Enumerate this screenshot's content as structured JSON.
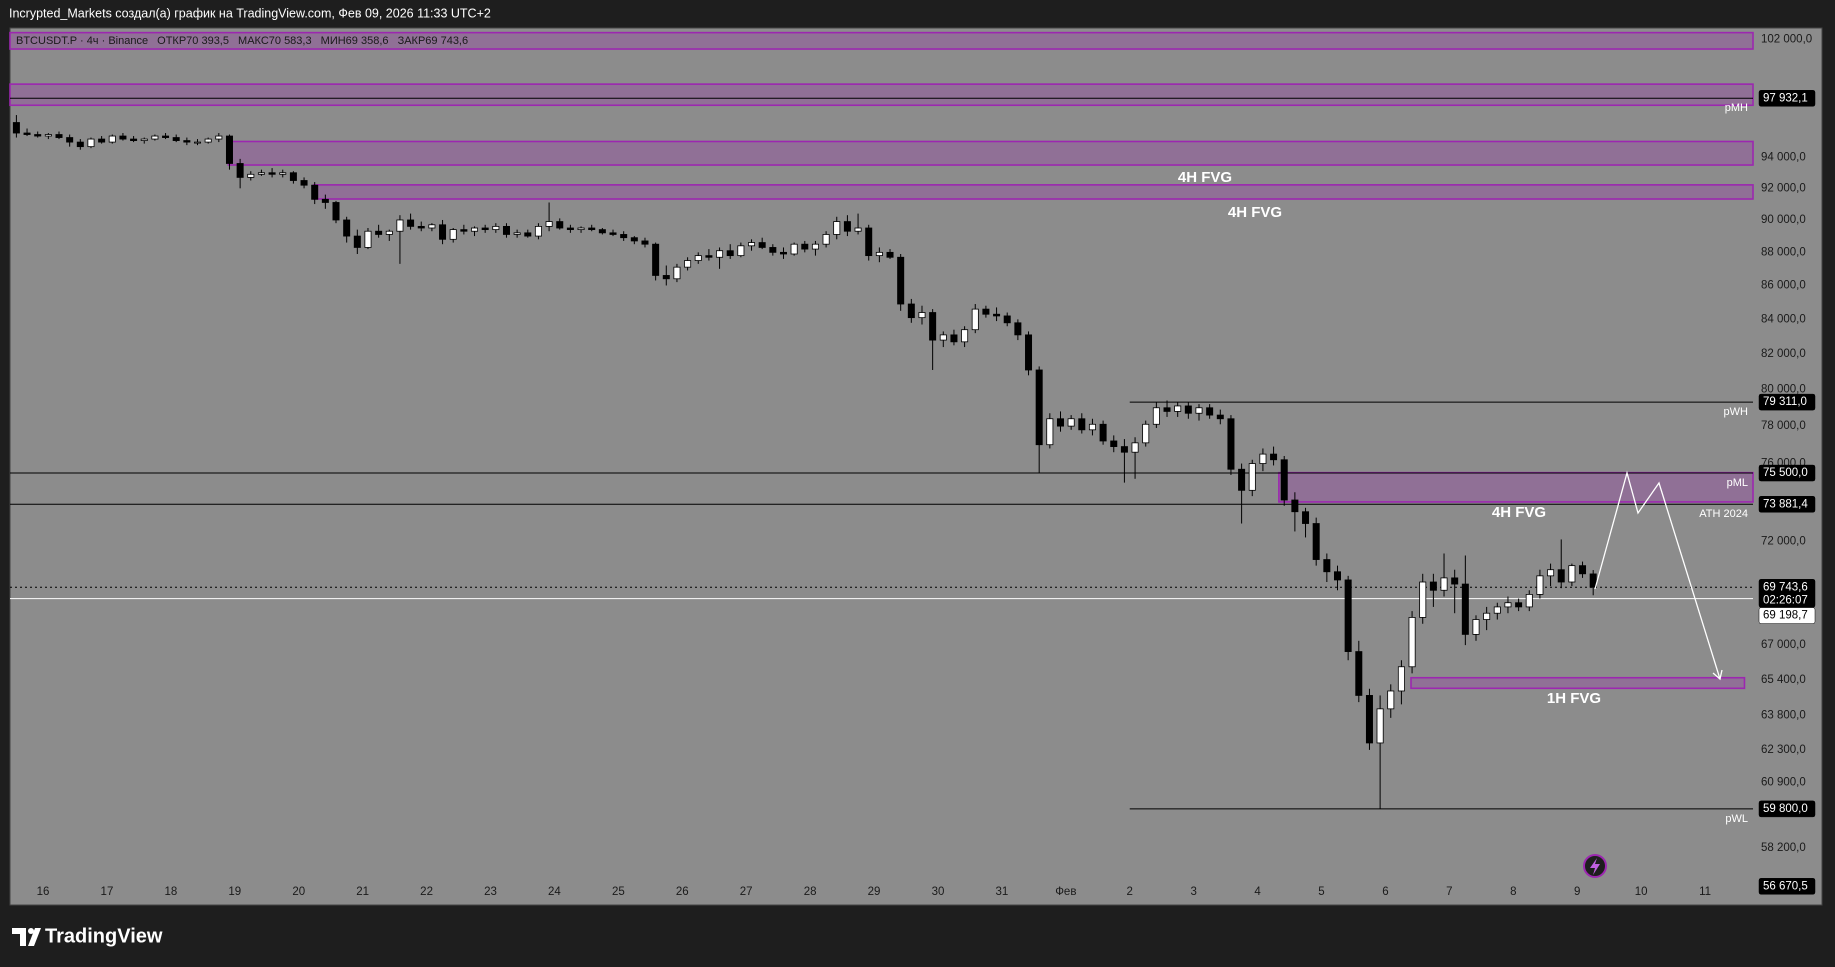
{
  "header": {
    "title": "Incrypted_Markets создал(а) график на TradingView.com, Фев 09, 2026 11:33 UTC+2"
  },
  "chart_data": {
    "type": "candlestick",
    "symbol": "BTCUSDT.P · 4ч · Binance",
    "legend": [
      "ОТКР70 393,5",
      "МАКС70 583,3",
      "МИН69 358,6",
      "ЗАКР69 743,6"
    ],
    "log_scale": true,
    "grid": false,
    "up_color": "#ffffff",
    "down_color": "#000000",
    "ylim": [
      55940,
      102830
    ],
    "yticks": [
      {
        "value": 102000,
        "label": "102 000,0"
      },
      {
        "value": 94000,
        "label": "94 000,0"
      },
      {
        "value": 92000,
        "label": "92 000,0"
      },
      {
        "value": 90000,
        "label": "90 000,0"
      },
      {
        "value": 88000,
        "label": "88 000,0"
      },
      {
        "value": 86000,
        "label": "86 000,0"
      },
      {
        "value": 84000,
        "label": "84 000,0"
      },
      {
        "value": 82000,
        "label": "82 000,0"
      },
      {
        "value": 80000,
        "label": "80 000,0"
      },
      {
        "value": 78000,
        "label": "78 000,0"
      },
      {
        "value": 76000,
        "label": "76 000,0"
      },
      {
        "value": 72000,
        "label": "72 000,0"
      },
      {
        "value": 67000,
        "label": "67 000,0"
      },
      {
        "value": 65400,
        "label": "65 400,0"
      },
      {
        "value": 63800,
        "label": "63 800,0"
      },
      {
        "value": 62300,
        "label": "62 300,0"
      },
      {
        "value": 60900,
        "label": "60 900,0"
      },
      {
        "value": 58200,
        "label": "58 200,0"
      }
    ],
    "xlim": [
      -0.6,
      163
    ],
    "xticks": [
      {
        "value": 2.5,
        "label": "16"
      },
      {
        "value": 8.5,
        "label": "17"
      },
      {
        "value": 14.5,
        "label": "18"
      },
      {
        "value": 20.5,
        "label": "19"
      },
      {
        "value": 26.5,
        "label": "20"
      },
      {
        "value": 32.5,
        "label": "21"
      },
      {
        "value": 38.5,
        "label": "22"
      },
      {
        "value": 44.5,
        "label": "23"
      },
      {
        "value": 50.5,
        "label": "24"
      },
      {
        "value": 56.5,
        "label": "25"
      },
      {
        "value": 62.5,
        "label": "26"
      },
      {
        "value": 68.5,
        "label": "27"
      },
      {
        "value": 74.5,
        "label": "28"
      },
      {
        "value": 80.5,
        "label": "29"
      },
      {
        "value": 86.5,
        "label": "30"
      },
      {
        "value": 92.5,
        "label": "31"
      },
      {
        "value": 98.5,
        "label": "Фев"
      },
      {
        "value": 104.5,
        "label": "2"
      },
      {
        "value": 110.5,
        "label": "3"
      },
      {
        "value": 116.5,
        "label": "4"
      },
      {
        "value": 122.5,
        "label": "5"
      },
      {
        "value": 128.5,
        "label": "6"
      },
      {
        "value": 134.5,
        "label": "7"
      },
      {
        "value": 140.5,
        "label": "8"
      },
      {
        "value": 146.5,
        "label": "9"
      },
      {
        "value": 152.5,
        "label": "10"
      },
      {
        "value": 158.5,
        "label": "11"
      }
    ],
    "ohlc": [
      [
        96300,
        96800,
        95300,
        95600
      ],
      [
        95600,
        95900,
        95400,
        95500
      ],
      [
        95500,
        95700,
        95300,
        95400
      ],
      [
        95400,
        95600,
        95200,
        95500
      ],
      [
        95500,
        95700,
        95200,
        95300
      ],
      [
        95300,
        95500,
        94700,
        95000
      ],
      [
        95000,
        95200,
        94500,
        94700
      ],
      [
        94700,
        95300,
        94600,
        95200
      ],
      [
        95200,
        95400,
        94900,
        95000
      ],
      [
        95000,
        95500,
        94900,
        95400
      ],
      [
        95400,
        95600,
        95100,
        95200
      ],
      [
        95200,
        95400,
        95000,
        95100
      ],
      [
        95100,
        95300,
        94900,
        95200
      ],
      [
        95200,
        95500,
        95100,
        95400
      ],
      [
        95400,
        95600,
        95200,
        95300
      ],
      [
        95300,
        95500,
        95000,
        95100
      ],
      [
        95100,
        95300,
        94800,
        95000
      ],
      [
        95000,
        95200,
        94800,
        95000
      ],
      [
        95000,
        95300,
        94900,
        95200
      ],
      [
        95200,
        95600,
        95000,
        95400
      ],
      [
        95400,
        95500,
        93200,
        93600
      ],
      [
        93600,
        93900,
        92000,
        92700
      ],
      [
        92700,
        93100,
        92500,
        92900
      ],
      [
        92900,
        93200,
        92800,
        93000
      ],
      [
        93000,
        93300,
        92700,
        92900
      ],
      [
        92900,
        93200,
        92700,
        93000
      ],
      [
        93000,
        93100,
        92300,
        92500
      ],
      [
        92500,
        92700,
        92000,
        92200
      ],
      [
        92200,
        92400,
        91000,
        91300
      ],
      [
        91300,
        91600,
        90700,
        91100
      ],
      [
        91100,
        91200,
        89800,
        90000
      ],
      [
        90000,
        90200,
        88600,
        89000
      ],
      [
        89000,
        89400,
        87900,
        88300
      ],
      [
        88300,
        89500,
        88200,
        89300
      ],
      [
        89300,
        89700,
        88900,
        89100
      ],
      [
        89100,
        89400,
        88700,
        89300
      ],
      [
        89300,
        90300,
        87300,
        90000
      ],
      [
        90000,
        90400,
        89400,
        89600
      ],
      [
        89600,
        89900,
        89300,
        89500
      ],
      [
        89500,
        89800,
        89300,
        89700
      ],
      [
        89700,
        90000,
        88500,
        88800
      ],
      [
        88800,
        89500,
        88600,
        89400
      ],
      [
        89400,
        89700,
        89100,
        89300
      ],
      [
        89300,
        89600,
        89000,
        89500
      ],
      [
        89500,
        89700,
        89200,
        89400
      ],
      [
        89400,
        89800,
        89200,
        89600
      ],
      [
        89600,
        89800,
        88900,
        89100
      ],
      [
        89100,
        89400,
        88900,
        89200
      ],
      [
        89200,
        89400,
        88900,
        89000
      ],
      [
        89000,
        89800,
        88800,
        89600
      ],
      [
        89600,
        91100,
        89300,
        89900
      ],
      [
        89900,
        90100,
        89400,
        89500
      ],
      [
        89500,
        89700,
        89200,
        89400
      ],
      [
        89400,
        89600,
        89200,
        89500
      ],
      [
        89500,
        89700,
        89300,
        89400
      ],
      [
        89400,
        89500,
        89100,
        89200
      ],
      [
        89200,
        89400,
        89000,
        89100
      ],
      [
        89100,
        89300,
        88700,
        88900
      ],
      [
        88900,
        89000,
        88500,
        88700
      ],
      [
        88700,
        88900,
        88300,
        88500
      ],
      [
        88500,
        88600,
        86300,
        86600
      ],
      [
        86600,
        87200,
        86000,
        86400
      ],
      [
        86400,
        87300,
        86200,
        87100
      ],
      [
        87100,
        87700,
        86900,
        87500
      ],
      [
        87500,
        88000,
        87300,
        87800
      ],
      [
        87800,
        88200,
        87500,
        87700
      ],
      [
        87700,
        88300,
        87000,
        88100
      ],
      [
        88100,
        88500,
        87600,
        87800
      ],
      [
        87800,
        88600,
        87700,
        88400
      ],
      [
        88400,
        88800,
        88100,
        88600
      ],
      [
        88600,
        88900,
        88200,
        88300
      ],
      [
        88300,
        88500,
        87800,
        88000
      ],
      [
        88000,
        88300,
        87600,
        87900
      ],
      [
        87900,
        88600,
        87800,
        88500
      ],
      [
        88500,
        88700,
        88000,
        88200
      ],
      [
        88200,
        88700,
        87800,
        88500
      ],
      [
        88500,
        89300,
        88300,
        89100
      ],
      [
        89100,
        90200,
        88800,
        89900
      ],
      [
        89900,
        90300,
        89000,
        89300
      ],
      [
        89300,
        90400,
        89100,
        89500
      ],
      [
        89500,
        89700,
        87500,
        87800
      ],
      [
        87800,
        88300,
        87400,
        88000
      ],
      [
        88000,
        88200,
        87600,
        87700
      ],
      [
        87700,
        87900,
        84500,
        84900
      ],
      [
        84900,
        85200,
        83800,
        84100
      ],
      [
        84100,
        84800,
        83700,
        84400
      ],
      [
        84400,
        84600,
        81100,
        82800
      ],
      [
        82800,
        83300,
        82400,
        83100
      ],
      [
        83100,
        83400,
        82500,
        82700
      ],
      [
        82700,
        83600,
        82400,
        83400
      ],
      [
        83400,
        84900,
        83200,
        84600
      ],
      [
        84600,
        84800,
        84100,
        84300
      ],
      [
        84300,
        84700,
        83900,
        84200
      ],
      [
        84200,
        84400,
        83600,
        83800
      ],
      [
        83800,
        84000,
        82800,
        83100
      ],
      [
        83100,
        83300,
        80800,
        81100
      ],
      [
        81100,
        81300,
        75500,
        77000
      ],
      [
        77000,
        78700,
        76800,
        78400
      ],
      [
        78400,
        78800,
        77700,
        78000
      ],
      [
        78000,
        78600,
        77800,
        78400
      ],
      [
        78400,
        78700,
        77600,
        77800
      ],
      [
        77800,
        78400,
        77500,
        78100
      ],
      [
        78100,
        78300,
        77000,
        77200
      ],
      [
        77200,
        77500,
        76600,
        76900
      ],
      [
        76900,
        77300,
        75000,
        76600
      ],
      [
        76600,
        77400,
        75200,
        77100
      ],
      [
        77100,
        78300,
        76900,
        78100
      ],
      [
        78100,
        79300,
        77900,
        79000
      ],
      [
        79000,
        79400,
        78500,
        78800
      ],
      [
        78800,
        79300,
        78500,
        79100
      ],
      [
        79100,
        79300,
        78400,
        78700
      ],
      [
        78700,
        79200,
        78300,
        79000
      ],
      [
        79000,
        79200,
        78400,
        78600
      ],
      [
        78600,
        78900,
        78100,
        78400
      ],
      [
        78400,
        78600,
        75400,
        75700
      ],
      [
        75700,
        76000,
        72900,
        74600
      ],
      [
        74600,
        76200,
        74300,
        76000
      ],
      [
        76000,
        76800,
        75600,
        76500
      ],
      [
        76500,
        76900,
        75900,
        76200
      ],
      [
        76200,
        76400,
        73800,
        74100
      ],
      [
        74100,
        74500,
        72500,
        73500
      ],
      [
        73500,
        73700,
        72200,
        72900
      ],
      [
        72900,
        73200,
        70800,
        71100
      ],
      [
        71100,
        71400,
        70000,
        70500
      ],
      [
        70500,
        70800,
        69600,
        70100
      ],
      [
        70100,
        70300,
        66300,
        66700
      ],
      [
        66700,
        67200,
        64400,
        64700
      ],
      [
        64700,
        65000,
        62300,
        62600
      ],
      [
        62600,
        64700,
        59800,
        64100
      ],
      [
        64100,
        65200,
        63700,
        64900
      ],
      [
        64900,
        66300,
        64300,
        66000
      ],
      [
        66000,
        68600,
        65700,
        68300
      ],
      [
        68300,
        70400,
        68000,
        70000
      ],
      [
        70000,
        70400,
        68800,
        69600
      ],
      [
        69600,
        71400,
        69300,
        70200
      ],
      [
        70200,
        70600,
        68500,
        69900
      ],
      [
        69900,
        71300,
        67000,
        67500
      ],
      [
        67500,
        68400,
        67200,
        68200
      ],
      [
        68200,
        68800,
        67700,
        68500
      ],
      [
        68500,
        69000,
        68200,
        68800
      ],
      [
        68800,
        69300,
        68500,
        69000
      ],
      [
        69000,
        69200,
        68600,
        68800
      ],
      [
        68800,
        69600,
        68600,
        69400
      ],
      [
        69400,
        70600,
        69200,
        70300
      ],
      [
        70300,
        70900,
        69800,
        70600
      ],
      [
        70600,
        72100,
        69700,
        70000
      ],
      [
        70000,
        70900,
        69800,
        70800
      ],
      [
        70800,
        71000,
        70200,
        70400
      ],
      [
        70393.5,
        70583.3,
        69358.6,
        69743.6
      ]
    ],
    "zones": [
      {
        "top": 102500,
        "bottom": 101340,
        "x_from": -0.6,
        "x_to": 163,
        "color": "#9c27b0"
      },
      {
        "top": 98900,
        "bottom": 97460,
        "x_from": -0.6,
        "x_to": 163,
        "color": "#9c27b0"
      },
      {
        "label": "4H FVG",
        "top": 95040,
        "bottom": 93500,
        "x_from": 19.9,
        "x_to": 163,
        "color": "#9c27b0"
      },
      {
        "label": "4H FVG",
        "top": 92220,
        "bottom": 91320,
        "x_from": 27.9,
        "x_to": 163,
        "color": "#9c27b0"
      },
      {
        "label": "4H FVG",
        "top": 75520,
        "bottom": 74000,
        "x_from": 118.5,
        "x_to": 163,
        "color": "#9c27b0"
      },
      {
        "label": "1H FVG",
        "top": 65500,
        "bottom": 65020,
        "x_from": 130.9,
        "x_to": 162.2,
        "color": "#9c27b0"
      }
    ],
    "price_lines": [
      {
        "name": "pMH",
        "value": 97932.1,
        "label": "97 932,1",
        "x_from": -0.6,
        "color": "#000000",
        "style": "solid"
      },
      {
        "name": "pWH",
        "value": 79311.0,
        "label": "79 311,0",
        "x_from": 104.5,
        "color": "#000000",
        "style": "solid"
      },
      {
        "name": "pML",
        "value": 75500.0,
        "label": "75 500,0",
        "x_from": -0.6,
        "color": "#000000",
        "style": "solid"
      },
      {
        "name": "ATH 2024",
        "value": 73881.4,
        "label": "73 881,4",
        "x_from": -0.6,
        "color": "#000000",
        "style": "solid"
      },
      {
        "value": 69743.6,
        "label": "69 743,6",
        "countdown": "02:26:07",
        "x_from": -0.6,
        "color": "#000000",
        "style": "dotted"
      },
      {
        "value": 69198.7,
        "label": "69 198,7",
        "x_from": -0.6,
        "color": "#ffffff",
        "style": "solid"
      },
      {
        "name": "pWL",
        "value": 59800.0,
        "label": "59 800,0",
        "x_from": 104.5,
        "color": "#000000",
        "style": "solid"
      },
      {
        "value": 56670.5,
        "label": "56 670,5",
        "color": "#000000",
        "style": "none"
      }
    ]
  },
  "footer": {
    "brand": "TradingView"
  }
}
